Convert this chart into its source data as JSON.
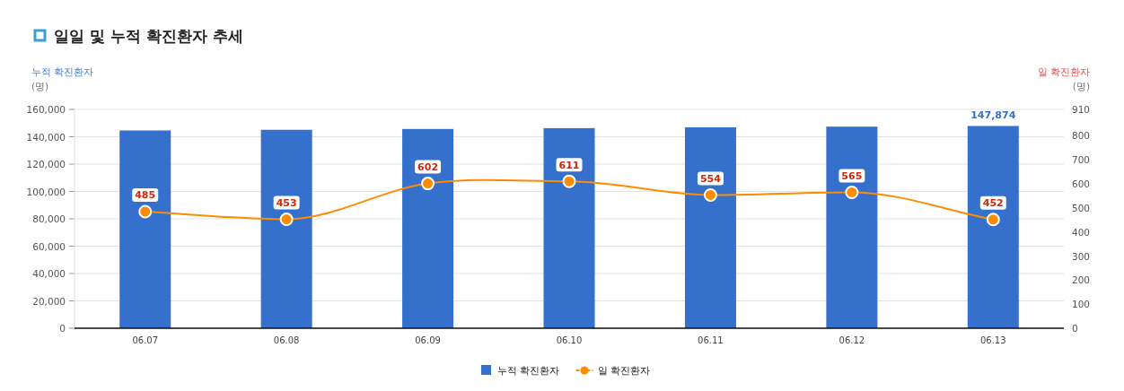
{
  "chart_data": {
    "type": "bar",
    "title": "일일 및 누적 확진환자 추세",
    "ylabel": "누적 확진환자 (명)",
    "y2label": "일 확진환자 (명)",
    "categories": [
      "06.07",
      "06.08",
      "06.09",
      "06.10",
      "06.11",
      "06.12",
      "06.13"
    ],
    "series": [
      {
        "name": "누적 확진환자",
        "color": "#3570cc",
        "values": [
          144600,
          145100,
          145700,
          146300,
          146900,
          147400,
          147874
        ],
        "value_labels": [
          null,
          null,
          null,
          null,
          null,
          null,
          "147,874"
        ]
      },
      {
        "name": "일 확진환자",
        "type": "line",
        "axis": "y2",
        "color": "#ff8c00",
        "marker": "circle",
        "values": [
          485,
          453,
          602,
          611,
          554,
          565,
          452
        ],
        "value_labels": [
          "485",
          "453",
          "602",
          "611",
          "554",
          "565",
          "452"
        ]
      }
    ],
    "ylim": [
      0,
      160000
    ],
    "yticks": [
      {
        "value": 0,
        "label": "0"
      },
      {
        "value": 20000,
        "label": "20,000"
      },
      {
        "value": 40000,
        "label": "40,000"
      },
      {
        "value": 60000,
        "label": "60,000"
      },
      {
        "value": 80000,
        "label": "80,000"
      },
      {
        "value": 100000,
        "label": "100,000"
      },
      {
        "value": 120000,
        "label": "120,000"
      },
      {
        "value": 140000,
        "label": "140,000"
      },
      {
        "value": 160000,
        "label": "160,000"
      }
    ],
    "y2lim": [
      0,
      910
    ],
    "y2ticks": [
      0,
      100,
      200,
      300,
      400,
      500,
      600,
      700,
      800,
      910
    ],
    "grid": "y",
    "legend": "bottom"
  }
}
